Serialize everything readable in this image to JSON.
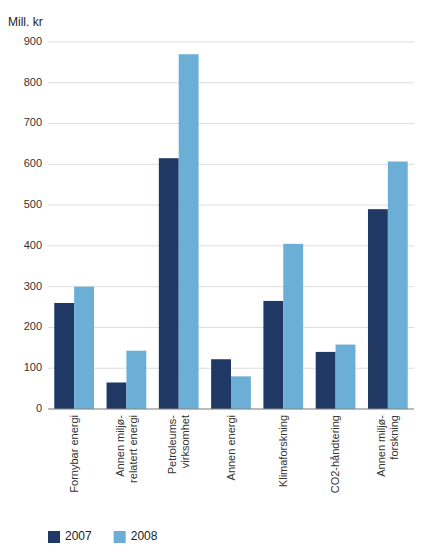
{
  "chart_data": {
    "type": "bar",
    "ylabel": "Mill. kr",
    "categories": [
      "Fornybar energi",
      "Annen miljø-\nrelatert energi",
      "Petroleums-\nvirksomhet",
      "Annen energi",
      "Klimaforskning",
      "CO2-håndtering",
      "Annen miljø-\nforskning"
    ],
    "series": [
      {
        "name": "2007",
        "color": "#1f3864",
        "values": [
          260,
          65,
          615,
          122,
          265,
          140,
          490
        ]
      },
      {
        "name": "2008",
        "color": "#6baed6",
        "values": [
          300,
          143,
          870,
          80,
          405,
          158,
          607
        ]
      }
    ],
    "ylim": [
      0,
      900
    ],
    "yticks": [
      0,
      100,
      200,
      300,
      400,
      500,
      600,
      700,
      800,
      900
    ],
    "grid": true,
    "legend": "bottom"
  }
}
